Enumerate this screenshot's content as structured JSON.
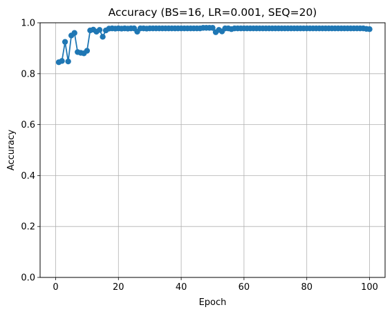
{
  "chart_data": {
    "type": "line",
    "title": "Accuracy (BS=16, LR=0.001, SEQ=20)",
    "xlabel": "Epoch",
    "ylabel": "Accuracy",
    "xlim": [
      -4.95,
      104.95
    ],
    "ylim": [
      0.0,
      1.0
    ],
    "xticks": [
      0,
      20,
      40,
      60,
      80,
      100
    ],
    "yticks": [
      0.0,
      0.2,
      0.4,
      0.6,
      0.8,
      1.0
    ],
    "xtick_labels": [
      "0",
      "20",
      "40",
      "60",
      "80",
      "100"
    ],
    "ytick_labels": [
      "0.0",
      "0.2",
      "0.4",
      "0.6",
      "0.8",
      "1.0"
    ],
    "grid": true,
    "legend": false,
    "series": [
      {
        "color": "#1f77b4",
        "marker": "circle",
        "x": [
          1,
          2,
          3,
          4,
          5,
          6,
          7,
          8,
          9,
          10,
          11,
          12,
          13,
          14,
          15,
          16,
          17,
          18,
          19,
          20,
          21,
          22,
          23,
          24,
          25,
          26,
          27,
          28,
          29,
          30,
          31,
          32,
          33,
          34,
          35,
          36,
          37,
          38,
          39,
          40,
          41,
          42,
          43,
          44,
          45,
          46,
          47,
          48,
          49,
          50,
          51,
          52,
          53,
          54,
          55,
          56,
          57,
          58,
          59,
          60,
          61,
          62,
          63,
          64,
          65,
          66,
          67,
          68,
          69,
          70,
          71,
          72,
          73,
          74,
          75,
          76,
          77,
          78,
          79,
          80,
          81,
          82,
          83,
          84,
          85,
          86,
          87,
          88,
          89,
          90,
          91,
          92,
          93,
          94,
          95,
          96,
          97,
          98,
          99,
          100
        ],
        "values": [
          0.845,
          0.85,
          0.925,
          0.848,
          0.95,
          0.96,
          0.885,
          0.882,
          0.88,
          0.89,
          0.97,
          0.973,
          0.965,
          0.972,
          0.945,
          0.97,
          0.977,
          0.978,
          0.977,
          0.978,
          0.977,
          0.978,
          0.977,
          0.978,
          0.978,
          0.965,
          0.978,
          0.978,
          0.977,
          0.978,
          0.978,
          0.978,
          0.978,
          0.978,
          0.978,
          0.978,
          0.978,
          0.978,
          0.978,
          0.978,
          0.978,
          0.978,
          0.978,
          0.978,
          0.978,
          0.978,
          0.98,
          0.98,
          0.98,
          0.98,
          0.963,
          0.972,
          0.966,
          0.978,
          0.978,
          0.975,
          0.978,
          0.978,
          0.978,
          0.978,
          0.978,
          0.978,
          0.978,
          0.978,
          0.978,
          0.978,
          0.978,
          0.978,
          0.978,
          0.978,
          0.978,
          0.978,
          0.978,
          0.978,
          0.978,
          0.978,
          0.978,
          0.978,
          0.978,
          0.978,
          0.978,
          0.978,
          0.978,
          0.978,
          0.978,
          0.978,
          0.978,
          0.978,
          0.978,
          0.978,
          0.978,
          0.978,
          0.978,
          0.978,
          0.978,
          0.978,
          0.978,
          0.978,
          0.976,
          0.975
        ]
      }
    ]
  }
}
